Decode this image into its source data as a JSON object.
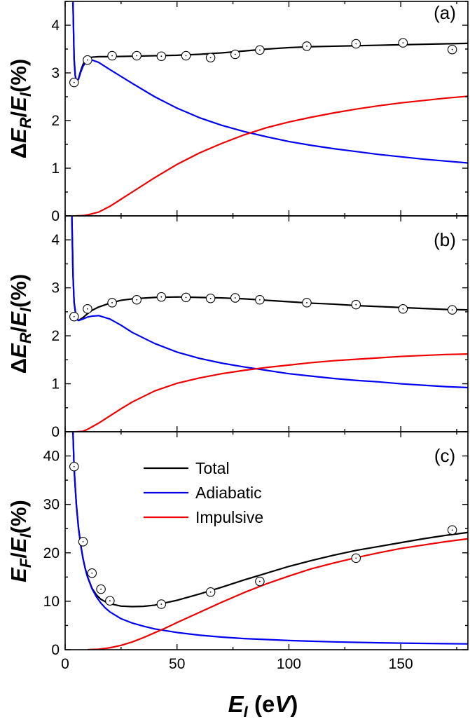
{
  "chart_data": [
    {
      "panel": "(a)",
      "type": "line",
      "ylabel": "ΔE_R/E_I(%)",
      "xlim": [
        0,
        180
      ],
      "ylim": [
        0,
        4.5
      ],
      "yticks": [
        0,
        1,
        2,
        3,
        4
      ],
      "series": [
        {
          "name": "Total",
          "color": "#000000",
          "x": [
            3.5,
            4,
            4.5,
            5,
            6,
            7,
            8,
            9,
            10,
            12,
            15,
            20,
            30,
            40,
            50,
            60,
            70,
            80,
            90,
            100,
            110,
            120,
            130,
            140,
            150,
            160,
            170,
            180
          ],
          "y": [
            4.5,
            3.3,
            2.95,
            2.82,
            2.88,
            3.05,
            3.18,
            3.25,
            3.3,
            3.33,
            3.34,
            3.34,
            3.35,
            3.36,
            3.37,
            3.39,
            3.42,
            3.46,
            3.5,
            3.53,
            3.55,
            3.56,
            3.57,
            3.58,
            3.59,
            3.6,
            3.61,
            3.62
          ]
        },
        {
          "name": "Adiabatic",
          "color": "#0000ee",
          "x": [
            3.5,
            4,
            4.5,
            5,
            6,
            7,
            8,
            9,
            10,
            12,
            15,
            20,
            30,
            40,
            50,
            60,
            70,
            80,
            90,
            100,
            110,
            120,
            130,
            140,
            150,
            160,
            170,
            180
          ],
          "y": [
            4.5,
            3.3,
            2.95,
            2.82,
            2.87,
            3.02,
            3.14,
            3.21,
            3.25,
            3.27,
            3.22,
            3.07,
            2.78,
            2.5,
            2.26,
            2.06,
            1.9,
            1.77,
            1.66,
            1.56,
            1.48,
            1.41,
            1.35,
            1.29,
            1.24,
            1.19,
            1.15,
            1.11
          ]
        },
        {
          "name": "Impulsive",
          "color": "#ee0000",
          "x": [
            5,
            8,
            10,
            15,
            20,
            25,
            30,
            40,
            50,
            60,
            70,
            80,
            90,
            100,
            110,
            120,
            130,
            140,
            150,
            160,
            170,
            180
          ],
          "y": [
            0,
            0.005,
            0.02,
            0.08,
            0.2,
            0.35,
            0.5,
            0.8,
            1.08,
            1.32,
            1.52,
            1.7,
            1.85,
            1.97,
            2.07,
            2.16,
            2.24,
            2.31,
            2.37,
            2.42,
            2.47,
            2.51
          ]
        }
      ],
      "markers": {
        "name": "data points",
        "x": [
          4,
          10,
          21,
          32,
          43,
          54,
          65,
          76,
          87,
          108,
          130,
          151,
          173
        ],
        "y": [
          2.8,
          3.27,
          3.36,
          3.36,
          3.35,
          3.36,
          3.32,
          3.39,
          3.48,
          3.56,
          3.61,
          3.63,
          3.49
        ]
      }
    },
    {
      "panel": "(b)",
      "type": "line",
      "ylabel": "ΔE_R/E_I(%)",
      "xlim": [
        0,
        180
      ],
      "ylim": [
        0,
        4.5
      ],
      "yticks": [
        0,
        1,
        2,
        3,
        4
      ],
      "series": [
        {
          "name": "Total",
          "color": "#000000",
          "x": [
            3,
            3.5,
            4,
            5,
            6,
            8,
            10,
            12,
            15,
            20,
            25,
            30,
            40,
            50,
            60,
            70,
            80,
            90,
            100,
            110,
            120,
            130,
            140,
            150,
            160,
            170,
            180
          ],
          "y": [
            4.5,
            3.3,
            2.7,
            2.35,
            2.32,
            2.38,
            2.46,
            2.53,
            2.6,
            2.68,
            2.74,
            2.77,
            2.8,
            2.81,
            2.8,
            2.79,
            2.77,
            2.74,
            2.71,
            2.68,
            2.66,
            2.63,
            2.61,
            2.59,
            2.57,
            2.55,
            2.54
          ]
        },
        {
          "name": "Adiabatic",
          "color": "#0000ee",
          "x": [
            3,
            3.5,
            4,
            5,
            6,
            8,
            10,
            12,
            15,
            20,
            25,
            30,
            40,
            50,
            60,
            70,
            80,
            90,
            100,
            110,
            120,
            130,
            140,
            150,
            160,
            170,
            180
          ],
          "y": [
            4.5,
            3.3,
            2.7,
            2.35,
            2.32,
            2.35,
            2.39,
            2.41,
            2.42,
            2.35,
            2.22,
            2.07,
            1.84,
            1.66,
            1.53,
            1.43,
            1.35,
            1.28,
            1.21,
            1.16,
            1.11,
            1.07,
            1.04,
            1.0,
            0.97,
            0.94,
            0.92
          ]
        },
        {
          "name": "Impulsive",
          "color": "#ee0000",
          "x": [
            5,
            8,
            10,
            15,
            20,
            25,
            30,
            40,
            50,
            60,
            70,
            80,
            90,
            100,
            110,
            120,
            130,
            140,
            150,
            160,
            170,
            180
          ],
          "y": [
            0,
            0.01,
            0.05,
            0.18,
            0.33,
            0.48,
            0.62,
            0.85,
            1.01,
            1.12,
            1.21,
            1.28,
            1.34,
            1.39,
            1.44,
            1.48,
            1.51,
            1.54,
            1.57,
            1.59,
            1.61,
            1.62
          ]
        }
      ],
      "markers": {
        "name": "data points",
        "x": [
          4,
          10,
          21,
          32,
          43,
          54,
          65,
          76,
          87,
          108,
          130,
          151,
          173
        ],
        "y": [
          2.4,
          2.56,
          2.69,
          2.75,
          2.81,
          2.8,
          2.78,
          2.79,
          2.75,
          2.69,
          2.65,
          2.56,
          2.54
        ]
      }
    },
    {
      "panel": "(c)",
      "type": "line",
      "ylabel": "E_F/E_I(%)",
      "xlabel": "E_I (eV)",
      "xlim": [
        0,
        180
      ],
      "ylim": [
        0,
        45
      ],
      "yticks": [
        0,
        10,
        20,
        30,
        40
      ],
      "xticks": [
        0,
        50,
        100,
        150
      ],
      "legend": {
        "position": "top-center",
        "entries": [
          "Total",
          "Adiabatic",
          "Impulsive"
        ]
      },
      "series": [
        {
          "name": "Total",
          "color": "#000000",
          "x": [
            3.5,
            4,
            5,
            6,
            7,
            8,
            9,
            10,
            12,
            14,
            16,
            18,
            20,
            25,
            30,
            35,
            40,
            45,
            50,
            60,
            70,
            80,
            90,
            100,
            110,
            120,
            130,
            140,
            150,
            160,
            170,
            180
          ],
          "y": [
            45,
            37.5,
            30.0,
            25.0,
            21.5,
            18.8,
            16.7,
            15.1,
            12.7,
            11.3,
            10.4,
            9.9,
            9.5,
            9.0,
            8.9,
            8.95,
            9.2,
            9.7,
            10.2,
            11.5,
            12.9,
            14.4,
            15.8,
            17.2,
            18.4,
            19.5,
            20.5,
            21.3,
            22.1,
            22.9,
            23.6,
            24.2
          ]
        },
        {
          "name": "Adiabatic",
          "color": "#0000ee",
          "x": [
            3.5,
            4,
            5,
            6,
            7,
            8,
            9,
            10,
            12,
            14,
            16,
            18,
            20,
            25,
            30,
            35,
            40,
            50,
            60,
            70,
            80,
            90,
            100,
            110,
            120,
            130,
            140,
            150,
            160,
            170,
            180
          ],
          "y": [
            45,
            37.5,
            30.0,
            25.0,
            21.5,
            18.8,
            16.7,
            15.0,
            12.6,
            10.9,
            9.6,
            8.6,
            7.8,
            6.4,
            5.5,
            4.85,
            4.3,
            3.55,
            3.0,
            2.6,
            2.3,
            2.1,
            1.9,
            1.75,
            1.62,
            1.52,
            1.43,
            1.36,
            1.3,
            1.25,
            1.2
          ]
        },
        {
          "name": "Impulsive",
          "color": "#ee0000",
          "x": [
            10,
            15,
            20,
            25,
            30,
            35,
            40,
            45,
            50,
            60,
            70,
            80,
            90,
            100,
            110,
            120,
            130,
            140,
            150,
            160,
            170,
            180
          ],
          "y": [
            0,
            0.1,
            0.4,
            0.9,
            1.6,
            2.5,
            3.5,
            4.5,
            5.6,
            7.7,
            9.8,
            11.8,
            13.6,
            15.2,
            16.7,
            17.9,
            19.0,
            20.0,
            20.9,
            21.6,
            22.3,
            22.9
          ]
        }
      ],
      "markers": {
        "name": "data points",
        "x": [
          4,
          8,
          12,
          16,
          20,
          43,
          65,
          87,
          130,
          173
        ],
        "y": [
          37.8,
          22.3,
          15.8,
          12.5,
          10.1,
          9.4,
          11.9,
          14.1,
          18.9,
          24.7
        ]
      }
    }
  ]
}
